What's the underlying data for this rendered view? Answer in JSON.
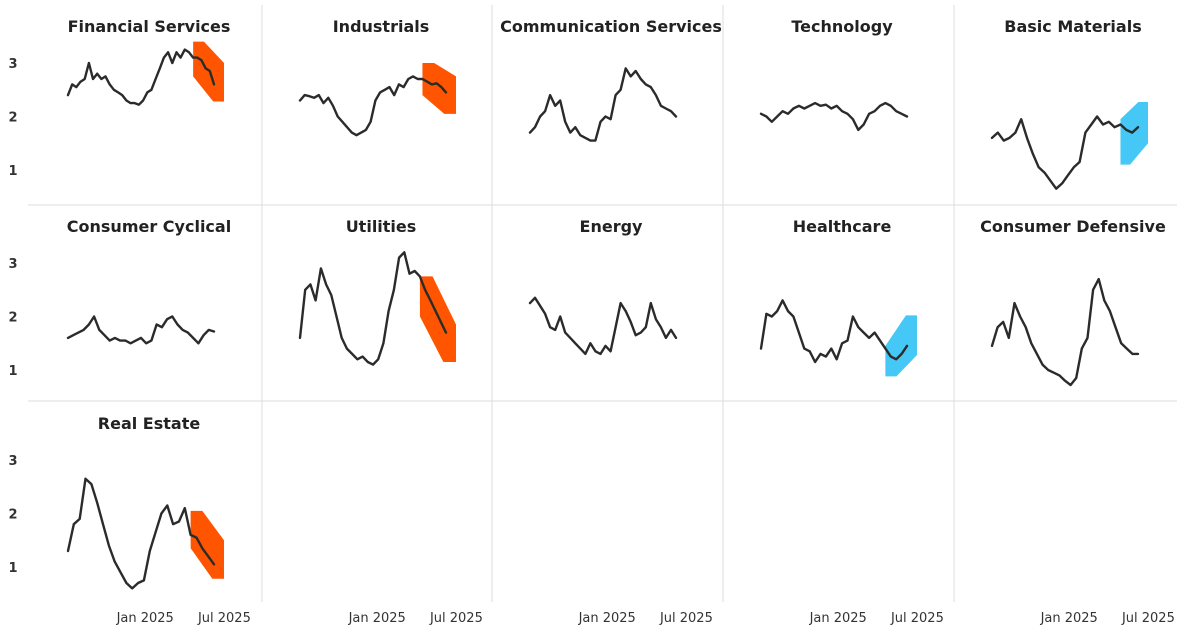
{
  "chart_data": {
    "type": "line",
    "description_note": "",
    "y_ticks": [
      "1",
      "2",
      "3"
    ],
    "x_ticks": [
      "Jan 2025",
      "Jul 2025"
    ],
    "ylim": [
      0.4,
      3.5
    ],
    "colors": {
      "line": "#2b2b2b",
      "down_band": "#ff5500",
      "up_band": "#45c8f5",
      "grid": "#dcdcdc"
    },
    "panels": [
      {
        "title": "Financial Services",
        "values": [
          2.4,
          2.6,
          2.55,
          2.65,
          2.7,
          3.0,
          2.7,
          2.8,
          2.7,
          2.75,
          2.6,
          2.5,
          2.45,
          2.4,
          2.3,
          2.25,
          2.25,
          2.22,
          2.3,
          2.45,
          2.5,
          2.7,
          2.9,
          3.1,
          3.2,
          3.0,
          3.2,
          3.1,
          3.25,
          3.2,
          3.1,
          3.1,
          3.05,
          2.9,
          2.85,
          2.6
        ],
        "band": {
          "dir": "down",
          "start": 0.86,
          "upper": [
            3.4,
            3.0
          ],
          "lower": [
            2.75,
            2.28
          ]
        }
      },
      {
        "title": "Industrials",
        "values": [
          2.3,
          2.4,
          2.38,
          2.35,
          2.4,
          2.25,
          2.35,
          2.2,
          2.0,
          1.9,
          1.8,
          1.7,
          1.65,
          1.7,
          1.75,
          1.9,
          2.3,
          2.45,
          2.5,
          2.55,
          2.4,
          2.6,
          2.55,
          2.7,
          2.75,
          2.7,
          2.7,
          2.65,
          2.6,
          2.62,
          2.55,
          2.45
        ],
        "band": {
          "dir": "down",
          "start": 0.85,
          "upper": [
            3.0,
            2.75
          ],
          "lower": [
            2.4,
            2.05
          ]
        }
      },
      {
        "title": "Communication Services",
        "values": [
          1.7,
          1.8,
          2.0,
          2.1,
          2.4,
          2.2,
          2.3,
          1.9,
          1.7,
          1.8,
          1.65,
          1.6,
          1.55,
          1.55,
          1.9,
          2.0,
          1.95,
          2.4,
          2.5,
          2.9,
          2.75,
          2.85,
          2.7,
          2.6,
          2.55,
          2.4,
          2.2,
          2.15,
          2.1,
          2.0
        ],
        "band": null
      },
      {
        "title": "Technology",
        "values": [
          2.05,
          2.0,
          1.9,
          2.0,
          2.1,
          2.05,
          2.15,
          2.2,
          2.15,
          2.2,
          2.25,
          2.2,
          2.22,
          2.15,
          2.2,
          2.1,
          2.05,
          1.95,
          1.75,
          1.85,
          2.05,
          2.1,
          2.2,
          2.25,
          2.2,
          2.1,
          2.05,
          2.0
        ],
        "band": null
      },
      {
        "title": "Basic Materials",
        "values": [
          1.6,
          1.7,
          1.55,
          1.6,
          1.7,
          1.95,
          1.6,
          1.3,
          1.05,
          0.95,
          0.8,
          0.65,
          0.75,
          0.9,
          1.05,
          1.15,
          1.7,
          1.85,
          2.0,
          1.85,
          1.9,
          1.8,
          1.85,
          1.75,
          1.7,
          1.8
        ],
        "band": {
          "dir": "up",
          "start": 0.86,
          "upper": [
            1.95,
            2.27
          ],
          "lower": [
            1.1,
            1.5
          ]
        }
      },
      {
        "title": "Consumer Cyclical",
        "values": [
          1.6,
          1.65,
          1.7,
          1.75,
          1.85,
          2.0,
          1.75,
          1.65,
          1.55,
          1.6,
          1.55,
          1.55,
          1.5,
          1.55,
          1.6,
          1.5,
          1.55,
          1.85,
          1.8,
          1.95,
          2.0,
          1.85,
          1.75,
          1.7,
          1.6,
          1.5,
          1.65,
          1.75,
          1.72
        ],
        "band": null
      },
      {
        "title": "Utilities",
        "values": [
          1.6,
          2.5,
          2.6,
          2.3,
          2.9,
          2.6,
          2.4,
          2.0,
          1.6,
          1.4,
          1.3,
          1.2,
          1.25,
          1.15,
          1.1,
          1.2,
          1.5,
          2.1,
          2.5,
          3.1,
          3.2,
          2.8,
          2.85,
          2.75,
          2.5,
          2.3,
          2.1,
          1.9,
          1.7
        ],
        "band": {
          "dir": "down",
          "start": 0.83,
          "upper": [
            2.75,
            1.85
          ],
          "lower": [
            2.0,
            1.15
          ]
        }
      },
      {
        "title": "Energy",
        "values": [
          2.25,
          2.35,
          2.2,
          2.05,
          1.8,
          1.75,
          2.0,
          1.7,
          1.6,
          1.5,
          1.4,
          1.3,
          1.5,
          1.35,
          1.3,
          1.45,
          1.35,
          1.8,
          2.25,
          2.1,
          1.9,
          1.65,
          1.7,
          1.8,
          2.25,
          1.95,
          1.8,
          1.6,
          1.75,
          1.6
        ],
        "band": null
      },
      {
        "title": "Healthcare",
        "values": [
          1.4,
          2.05,
          2.0,
          2.1,
          2.3,
          2.1,
          2.0,
          1.7,
          1.4,
          1.35,
          1.15,
          1.3,
          1.25,
          1.4,
          1.2,
          1.5,
          1.55,
          2.0,
          1.8,
          1.7,
          1.6,
          1.7,
          1.55,
          1.4,
          1.25,
          1.2,
          1.3,
          1.45
        ],
        "band": {
          "dir": "up",
          "start": 0.84,
          "upper": [
            1.45,
            2.02
          ],
          "lower": [
            0.88,
            1.28
          ]
        }
      },
      {
        "title": "Consumer Defensive",
        "values": [
          1.45,
          1.8,
          1.9,
          1.6,
          2.25,
          2.0,
          1.8,
          1.5,
          1.3,
          1.1,
          1.0,
          0.95,
          0.9,
          0.8,
          0.72,
          0.85,
          1.4,
          1.6,
          2.5,
          2.7,
          2.3,
          2.1,
          1.8,
          1.5,
          1.4,
          1.3,
          1.3
        ],
        "band": null
      },
      {
        "title": "Real Estate",
        "values": [
          1.3,
          1.8,
          1.9,
          2.65,
          2.55,
          2.2,
          1.8,
          1.4,
          1.1,
          0.9,
          0.7,
          0.6,
          0.7,
          0.75,
          1.3,
          1.65,
          2.0,
          2.15,
          1.8,
          1.85,
          2.1,
          1.6,
          1.55,
          1.35,
          1.2,
          1.05
        ],
        "band": {
          "dir": "down",
          "start": 0.83,
          "upper": [
            2.05,
            1.5
          ],
          "lower": [
            1.35,
            0.78
          ]
        }
      }
    ]
  }
}
